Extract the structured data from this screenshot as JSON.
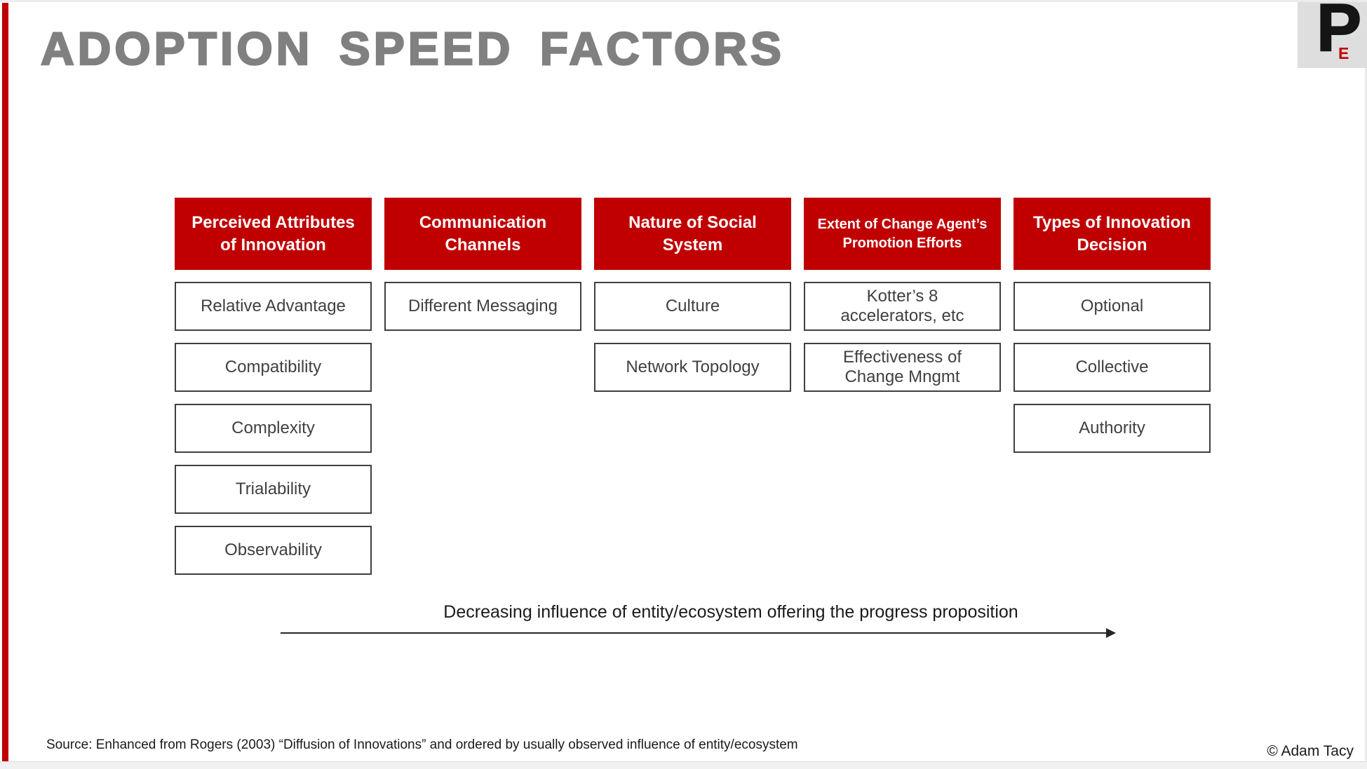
{
  "title": "ADOPTION SPEED FACTORS",
  "logo": {
    "p": "P",
    "e": "E"
  },
  "columns": [
    {
      "header": "Perceived Attributes\nof Innovation",
      "items": [
        "Relative Advantage",
        "Compatibility",
        "Complexity",
        "Trialability",
        "Observability"
      ]
    },
    {
      "header": "Communication\nChannels",
      "items": [
        "Different Messaging"
      ]
    },
    {
      "header": "Nature of Social\nSystem",
      "items": [
        "Culture",
        "Network Topology"
      ]
    },
    {
      "header": "Extent of Change Agent’s\nPromotion Efforts",
      "items": [
        "Kotter’s 8\naccelerators, etc",
        "Effectiveness of\nChange Mngmt"
      ]
    },
    {
      "header": "Types of Innovation\nDecision",
      "items": [
        "Optional",
        "Collective",
        "Authority"
      ]
    }
  ],
  "arrow_label": "Decreasing influence of entity/ecosystem offering the progress proposition",
  "source": "Source: Enhanced from Rogers (2003) “Diffusion of Innovations” and ordered by usually observed influence of entity/ecosystem",
  "copyright": "© Adam Tacy",
  "colors": {
    "accent_red": "#C00000",
    "title_gray": "#808080",
    "box_border": "#3F3F3F",
    "box_text": "#404040",
    "header_text": "#FFFFFF"
  }
}
